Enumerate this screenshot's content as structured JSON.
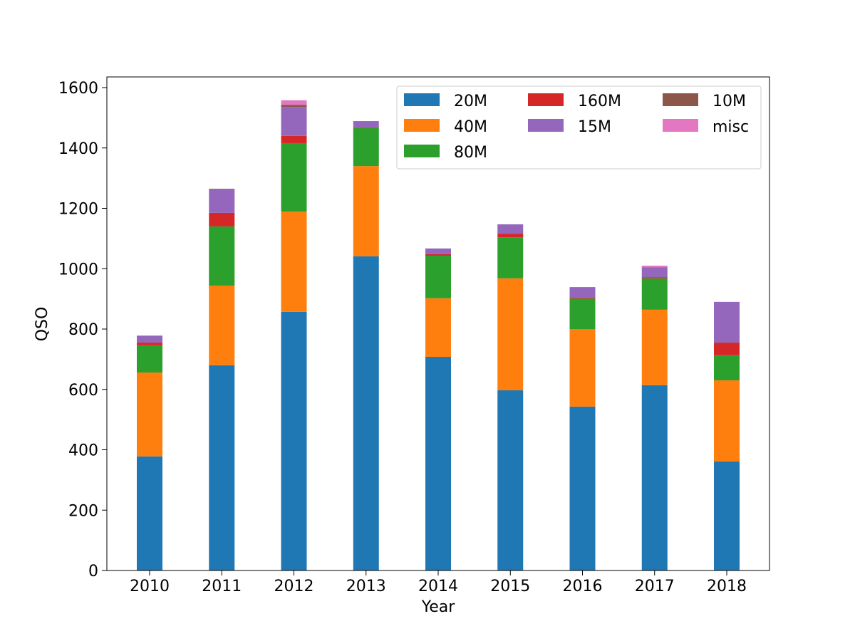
{
  "chart_data": {
    "type": "bar",
    "stacked": true,
    "title": "",
    "xlabel": "Year",
    "ylabel": "QSO",
    "ylim": [
      0,
      1640
    ],
    "yticks": [
      "0",
      "200",
      "400",
      "600",
      "800",
      "1000",
      "1200",
      "1400",
      "1600"
    ],
    "ytick_values": [
      0,
      200,
      400,
      600,
      800,
      1000,
      1200,
      1400,
      1600
    ],
    "categories": [
      "2010",
      "2011",
      "2012",
      "2013",
      "2014",
      "2015",
      "2016",
      "2017",
      "2018"
    ],
    "legend_position": "top-right",
    "series": [
      {
        "name": "20M",
        "color": "#1f77b4",
        "values": [
          378,
          680,
          857,
          1041,
          708,
          597,
          543,
          614,
          361
        ]
      },
      {
        "name": "40M",
        "color": "#ff7f0e",
        "values": [
          278,
          264,
          332,
          299,
          194,
          371,
          257,
          250,
          269
        ]
      },
      {
        "name": "80M",
        "color": "#2ca02c",
        "values": [
          90,
          196,
          227,
          126,
          141,
          136,
          101,
          104,
          83
        ]
      },
      {
        "name": "160M",
        "color": "#d62728",
        "values": [
          9,
          45,
          24,
          2,
          5,
          12,
          3,
          4,
          42
        ]
      },
      {
        "name": "15M",
        "color": "#9467bd",
        "values": [
          22,
          79,
          96,
          21,
          19,
          31,
          35,
          33,
          135
        ]
      },
      {
        "name": "10M",
        "color": "#8c564b",
        "values": [
          1,
          1,
          7,
          0,
          0,
          0,
          0,
          0,
          0
        ]
      },
      {
        "name": "misc",
        "color": "#e377c2",
        "values": [
          1,
          0,
          15,
          0,
          0,
          0,
          0,
          5,
          0
        ]
      }
    ]
  }
}
